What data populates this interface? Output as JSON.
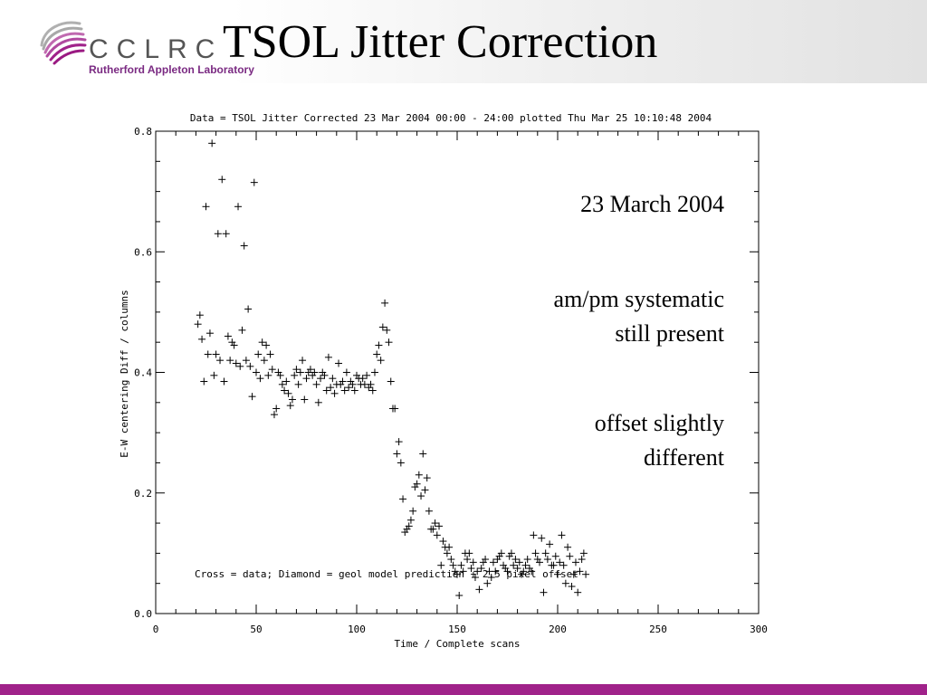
{
  "header": {
    "logo_letters": "CCLRC",
    "logo_subtitle": "Rutherford Appleton Laboratory",
    "title": "TSOL Jitter Correction"
  },
  "annotations": {
    "date": "23 March 2004",
    "systematic_line1": "am/pm systematic",
    "systematic_line2": "still present",
    "offset_line1": "offset slightly",
    "offset_line2": "different"
  },
  "colors": {
    "footer_bar": "#a0228a",
    "logo_text": "#555555",
    "logo_subtitle": "#7a2a82"
  },
  "chart_data": {
    "type": "scatter",
    "title": "Data = TSOL Jitter Corrected 23 Mar 2004 00:00 - 24:00 plotted Thu Mar 25 10:10:48 2004",
    "xlabel": "Time / Complete scans",
    "ylabel": "E-W centering Diff / columns",
    "xlim": [
      0,
      300
    ],
    "ylim": [
      0.0,
      0.8
    ],
    "xticks": [
      0,
      50,
      100,
      150,
      200,
      250,
      300
    ],
    "yticks": [
      0.0,
      0.2,
      0.4,
      0.6,
      0.8
    ],
    "xtick_labels": [
      "0",
      "50",
      "100",
      "150",
      "200",
      "250",
      "300"
    ],
    "ytick_labels": [
      "0.0",
      "0.2",
      "0.4",
      "0.6",
      "0.8"
    ],
    "legend_text": "Cross = data; Diamond = geol model prediction + 2.5 pixel offset",
    "grid": false,
    "series": [
      {
        "marker": "cross",
        "points": [
          [
            21,
            0.48
          ],
          [
            22,
            0.495
          ],
          [
            23,
            0.455
          ],
          [
            24,
            0.385
          ],
          [
            25,
            0.675
          ],
          [
            26,
            0.43
          ],
          [
            27,
            0.465
          ],
          [
            28,
            0.78
          ],
          [
            29,
            0.395
          ],
          [
            30,
            0.43
          ],
          [
            31,
            0.63
          ],
          [
            32,
            0.42
          ],
          [
            33,
            0.72
          ],
          [
            34,
            0.385
          ],
          [
            35,
            0.63
          ],
          [
            36,
            0.46
          ],
          [
            37,
            0.42
          ],
          [
            38,
            0.45
          ],
          [
            39,
            0.445
          ],
          [
            40,
            0.415
          ],
          [
            41,
            0.675
          ],
          [
            42,
            0.41
          ],
          [
            43,
            0.47
          ],
          [
            44,
            0.61
          ],
          [
            45,
            0.42
          ],
          [
            46,
            0.505
          ],
          [
            47,
            0.41
          ],
          [
            48,
            0.36
          ],
          [
            49,
            0.715
          ],
          [
            50,
            0.4
          ],
          [
            51,
            0.43
          ],
          [
            52,
            0.39
          ],
          [
            53,
            0.45
          ],
          [
            54,
            0.42
          ],
          [
            55,
            0.445
          ],
          [
            56,
            0.395
          ],
          [
            57,
            0.43
          ],
          [
            58,
            0.405
          ],
          [
            59,
            0.33
          ],
          [
            60,
            0.34
          ],
          [
            61,
            0.4
          ],
          [
            62,
            0.395
          ],
          [
            63,
            0.38
          ],
          [
            64,
            0.37
          ],
          [
            65,
            0.385
          ],
          [
            66,
            0.365
          ],
          [
            67,
            0.345
          ],
          [
            68,
            0.355
          ],
          [
            69,
            0.395
          ],
          [
            70,
            0.405
          ],
          [
            71,
            0.38
          ],
          [
            72,
            0.4
          ],
          [
            73,
            0.42
          ],
          [
            74,
            0.355
          ],
          [
            75,
            0.39
          ],
          [
            76,
            0.4
          ],
          [
            77,
            0.405
          ],
          [
            78,
            0.395
          ],
          [
            79,
            0.4
          ],
          [
            80,
            0.38
          ],
          [
            81,
            0.35
          ],
          [
            82,
            0.39
          ],
          [
            83,
            0.4
          ],
          [
            84,
            0.395
          ],
          [
            85,
            0.37
          ],
          [
            86,
            0.425
          ],
          [
            87,
            0.375
          ],
          [
            88,
            0.39
          ],
          [
            89,
            0.365
          ],
          [
            90,
            0.38
          ],
          [
            91,
            0.415
          ],
          [
            92,
            0.38
          ],
          [
            93,
            0.385
          ],
          [
            94,
            0.37
          ],
          [
            95,
            0.4
          ],
          [
            96,
            0.375
          ],
          [
            97,
            0.385
          ],
          [
            98,
            0.38
          ],
          [
            99,
            0.37
          ],
          [
            100,
            0.395
          ],
          [
            101,
            0.39
          ],
          [
            102,
            0.38
          ],
          [
            103,
            0.39
          ],
          [
            104,
            0.38
          ],
          [
            105,
            0.395
          ],
          [
            106,
            0.375
          ],
          [
            107,
            0.38
          ],
          [
            108,
            0.37
          ],
          [
            109,
            0.4
          ],
          [
            110,
            0.43
          ],
          [
            111,
            0.445
          ],
          [
            112,
            0.42
          ],
          [
            113,
            0.475
          ],
          [
            114,
            0.515
          ],
          [
            115,
            0.47
          ],
          [
            116,
            0.45
          ],
          [
            117,
            0.385
          ],
          [
            118,
            0.34
          ],
          [
            119,
            0.34
          ],
          [
            120,
            0.265
          ],
          [
            121,
            0.285
          ],
          [
            122,
            0.25
          ],
          [
            123,
            0.19
          ],
          [
            124,
            0.135
          ],
          [
            125,
            0.14
          ],
          [
            126,
            0.145
          ],
          [
            127,
            0.155
          ],
          [
            128,
            0.17
          ],
          [
            129,
            0.21
          ],
          [
            130,
            0.215
          ],
          [
            131,
            0.23
          ],
          [
            132,
            0.195
          ],
          [
            133,
            0.265
          ],
          [
            134,
            0.205
          ],
          [
            135,
            0.225
          ],
          [
            136,
            0.17
          ],
          [
            137,
            0.14
          ],
          [
            138,
            0.14
          ],
          [
            139,
            0.15
          ],
          [
            140,
            0.13
          ],
          [
            141,
            0.145
          ],
          [
            142,
            0.08
          ],
          [
            143,
            0.12
          ],
          [
            144,
            0.11
          ],
          [
            145,
            0.1
          ],
          [
            146,
            0.11
          ],
          [
            147,
            0.09
          ],
          [
            148,
            0.08
          ],
          [
            149,
            0.07
          ],
          [
            150,
            0.065
          ],
          [
            151,
            0.03
          ],
          [
            152,
            0.08
          ],
          [
            153,
            0.07
          ],
          [
            154,
            0.1
          ],
          [
            155,
            0.09
          ],
          [
            156,
            0.1
          ],
          [
            157,
            0.075
          ],
          [
            158,
            0.085
          ],
          [
            159,
            0.06
          ],
          [
            160,
            0.07
          ],
          [
            161,
            0.04
          ],
          [
            162,
            0.075
          ],
          [
            163,
            0.085
          ],
          [
            164,
            0.09
          ],
          [
            165,
            0.05
          ],
          [
            166,
            0.07
          ],
          [
            167,
            0.06
          ],
          [
            168,
            0.085
          ],
          [
            169,
            0.07
          ],
          [
            170,
            0.09
          ],
          [
            171,
            0.095
          ],
          [
            172,
            0.1
          ],
          [
            173,
            0.08
          ],
          [
            174,
            0.075
          ],
          [
            175,
            0.07
          ],
          [
            176,
            0.095
          ],
          [
            177,
            0.1
          ],
          [
            178,
            0.08
          ],
          [
            179,
            0.09
          ],
          [
            180,
            0.075
          ],
          [
            181,
            0.085
          ],
          [
            182,
            0.065
          ],
          [
            183,
            0.07
          ],
          [
            184,
            0.08
          ],
          [
            185,
            0.09
          ],
          [
            186,
            0.075
          ],
          [
            187,
            0.07
          ],
          [
            188,
            0.13
          ],
          [
            189,
            0.1
          ],
          [
            190,
            0.09
          ],
          [
            191,
            0.085
          ],
          [
            192,
            0.125
          ],
          [
            193,
            0.035
          ],
          [
            194,
            0.1
          ],
          [
            195,
            0.09
          ],
          [
            196,
            0.115
          ],
          [
            197,
            0.08
          ],
          [
            198,
            0.08
          ],
          [
            199,
            0.095
          ],
          [
            200,
            0.065
          ],
          [
            201,
            0.085
          ],
          [
            202,
            0.13
          ],
          [
            203,
            0.08
          ],
          [
            204,
            0.05
          ],
          [
            205,
            0.11
          ],
          [
            206,
            0.095
          ],
          [
            207,
            0.045
          ],
          [
            208,
            0.065
          ],
          [
            209,
            0.085
          ],
          [
            210,
            0.035
          ],
          [
            211,
            0.07
          ],
          [
            212,
            0.09
          ],
          [
            213,
            0.1
          ],
          [
            214,
            0.065
          ]
        ]
      }
    ]
  }
}
